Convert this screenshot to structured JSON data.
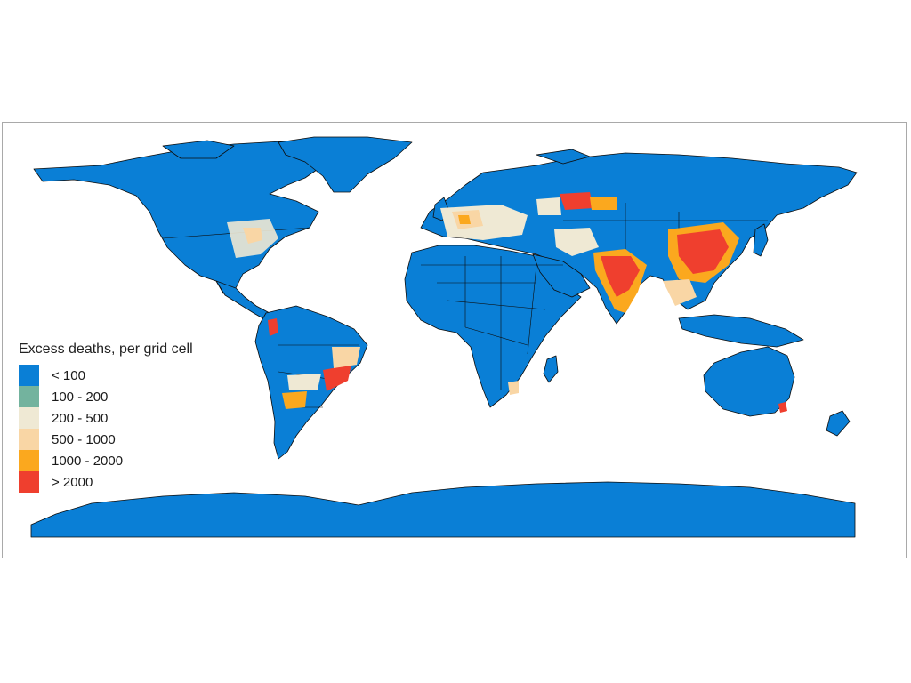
{
  "map": {
    "land_color": "#0a7fd6",
    "border_color": "#0d0d0d",
    "ocean_color": "#ffffff"
  },
  "legend": {
    "title": "Excess deaths, per grid cell",
    "items": [
      {
        "label": "< 100",
        "color": "#0a7fd6"
      },
      {
        "label": "100 - 200",
        "color": "#73b39e"
      },
      {
        "label": "200 - 500",
        "color": "#efe9d4"
      },
      {
        "label": "500 - 1000",
        "color": "#f9d6a5"
      },
      {
        "label": "1000 - 2000",
        "color": "#fba81e"
      },
      {
        "label": "> 2000",
        "color": "#ef3f2e"
      }
    ]
  }
}
